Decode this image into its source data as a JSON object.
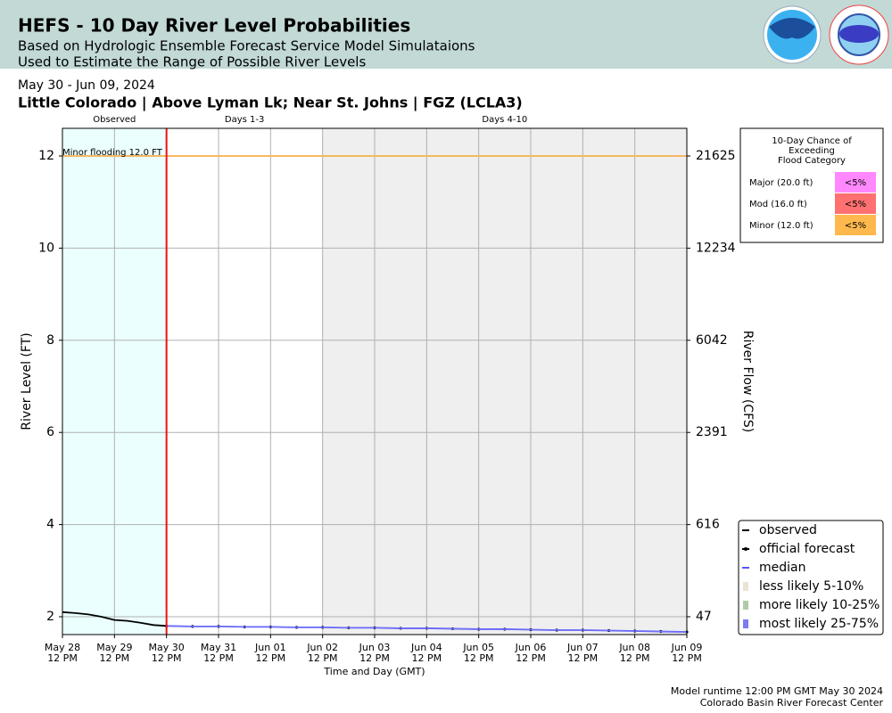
{
  "header": {
    "title": "HEFS - 10 Day River Level Probabilities",
    "subtitle_lines": [
      "Based on Hydrologic Ensemble Forecast Service Model Simulataions",
      "Used to Estimate the Range of Possible River Levels"
    ]
  },
  "chart_data": {
    "type": "line",
    "date_range": "May 30 - Jun 09, 2024",
    "title": "Little Colorado | Above Lyman Lk; Near St. Johns | FGZ (LCLA3)",
    "xlabel": "Time and Day (GMT)",
    "ylabel": "River Level (FT)",
    "y2label": "River Flow (CFS)",
    "xlim": [
      "2024-05-28T12:00Z",
      "2024-06-09T12:00Z"
    ],
    "xticks": [
      {
        "value": "2024-05-28T12:00Z",
        "label": [
          "May 28",
          "12 PM"
        ]
      },
      {
        "value": "2024-05-29T12:00Z",
        "label": [
          "May 29",
          "12 PM"
        ]
      },
      {
        "value": "2024-05-30T12:00Z",
        "label": [
          "May 30",
          "12 PM"
        ]
      },
      {
        "value": "2024-05-31T12:00Z",
        "label": [
          "May 31",
          "12 PM"
        ]
      },
      {
        "value": "2024-06-01T12:00Z",
        "label": [
          "Jun 01",
          "12 PM"
        ]
      },
      {
        "value": "2024-06-02T12:00Z",
        "label": [
          "Jun 02",
          "12 PM"
        ]
      },
      {
        "value": "2024-06-03T12:00Z",
        "label": [
          "Jun 03",
          "12 PM"
        ]
      },
      {
        "value": "2024-06-04T12:00Z",
        "label": [
          "Jun 04",
          "12 PM"
        ]
      },
      {
        "value": "2024-06-05T12:00Z",
        "label": [
          "Jun 05",
          "12 PM"
        ]
      },
      {
        "value": "2024-06-06T12:00Z",
        "label": [
          "Jun 06",
          "12 PM"
        ]
      },
      {
        "value": "2024-06-07T12:00Z",
        "label": [
          "Jun 07",
          "12 PM"
        ]
      },
      {
        "value": "2024-06-08T12:00Z",
        "label": [
          "Jun 08",
          "12 PM"
        ]
      },
      {
        "value": "2024-06-09T12:00Z",
        "label": [
          "Jun 09",
          "12 PM"
        ]
      }
    ],
    "ylim": [
      1.613,
      12.6
    ],
    "yticks": [
      2,
      4,
      6,
      8,
      10,
      12
    ],
    "y2ticks": [
      47,
      616,
      2391,
      6042,
      12234,
      21625
    ],
    "grid": true,
    "periods": [
      {
        "name": "Observed",
        "start": "2024-05-28T12:00Z",
        "end": "2024-05-30T12:00Z",
        "color": "#ebffff"
      },
      {
        "name": "Days 1-3",
        "start": "2024-05-30T12:00Z",
        "end": "2024-06-02T12:00Z",
        "color": "#ffffff"
      },
      {
        "name": "Days 4-10",
        "start": "2024-06-02T12:00Z",
        "end": "2024-06-09T12:00Z",
        "color": "#efefef"
      }
    ],
    "issue_time": "2024-05-30T12:00Z",
    "issue_color": "#ee1111",
    "thresholds": [
      {
        "label": "Minor flooding 12.0 FT",
        "value": 12,
        "color": "#f5b862"
      }
    ],
    "legend": "lower right",
    "series": [
      {
        "name": "observed",
        "color": "#000000",
        "style": "line",
        "x": [
          "2024-05-28T12:00Z",
          "2024-05-28T18:00Z",
          "2024-05-29T00:00Z",
          "2024-05-29T06:00Z",
          "2024-05-29T12:00Z",
          "2024-05-29T18:00Z",
          "2024-05-30T00:00Z",
          "2024-05-30T06:00Z",
          "2024-05-30T12:00Z"
        ],
        "values": [
          2.1,
          2.08,
          2.05,
          2.0,
          1.93,
          1.91,
          1.87,
          1.82,
          1.8
        ]
      },
      {
        "name": "official forecast",
        "color": "#000000",
        "style": "dots",
        "x": [
          "2024-05-30T12:00Z",
          "2024-05-31T00:00Z",
          "2024-05-31T12:00Z",
          "2024-06-01T00:00Z",
          "2024-06-01T12:00Z",
          "2024-06-02T00:00Z",
          "2024-06-02T12:00Z",
          "2024-06-03T00:00Z",
          "2024-06-03T12:00Z",
          "2024-06-04T00:00Z",
          "2024-06-04T12:00Z",
          "2024-06-05T00:00Z",
          "2024-06-05T12:00Z",
          "2024-06-06T00:00Z",
          "2024-06-06T12:00Z",
          "2024-06-07T00:00Z",
          "2024-06-07T12:00Z",
          "2024-06-08T00:00Z",
          "2024-06-08T12:00Z",
          "2024-06-09T00:00Z",
          "2024-06-09T12:00Z"
        ],
        "values": [
          1.8,
          1.79,
          1.79,
          1.78,
          1.78,
          1.77,
          1.77,
          1.76,
          1.76,
          1.75,
          1.75,
          1.74,
          1.73,
          1.73,
          1.72,
          1.71,
          1.71,
          1.7,
          1.69,
          1.68,
          1.67
        ]
      },
      {
        "name": "median",
        "color": "#5555ff",
        "style": "line",
        "x": [
          "2024-05-30T12:00Z",
          "2024-05-31T00:00Z",
          "2024-05-31T12:00Z",
          "2024-06-01T00:00Z",
          "2024-06-01T12:00Z",
          "2024-06-02T00:00Z",
          "2024-06-02T12:00Z",
          "2024-06-03T00:00Z",
          "2024-06-03T12:00Z",
          "2024-06-04T00:00Z",
          "2024-06-04T12:00Z",
          "2024-06-05T00:00Z",
          "2024-06-05T12:00Z",
          "2024-06-06T00:00Z",
          "2024-06-06T12:00Z",
          "2024-06-07T00:00Z",
          "2024-06-07T12:00Z",
          "2024-06-08T00:00Z",
          "2024-06-08T12:00Z",
          "2024-06-09T00:00Z",
          "2024-06-09T12:00Z"
        ],
        "values": [
          1.8,
          1.79,
          1.79,
          1.78,
          1.78,
          1.77,
          1.77,
          1.76,
          1.76,
          1.75,
          1.75,
          1.74,
          1.73,
          1.73,
          1.72,
          1.71,
          1.71,
          1.7,
          1.69,
          1.68,
          1.67
        ]
      },
      {
        "name": "less likely 5-10%",
        "color": "#ebe3d3",
        "style": "band"
      },
      {
        "name": "more likely 10-25%",
        "color": "#b0cba8",
        "style": "band"
      },
      {
        "name": "most likely 25-75%",
        "color": "#7c7cf2",
        "style": "band",
        "x": [
          "2024-05-30T12:00Z",
          "2024-05-31T12:00Z",
          "2024-06-01T12:00Z",
          "2024-06-02T12:00Z",
          "2024-06-03T12:00Z",
          "2024-06-04T12:00Z",
          "2024-06-05T12:00Z",
          "2024-06-06T12:00Z",
          "2024-06-07T12:00Z",
          "2024-06-08T12:00Z",
          "2024-06-09T12:00Z"
        ],
        "low": [
          1.79,
          1.78,
          1.77,
          1.76,
          1.75,
          1.74,
          1.72,
          1.71,
          1.7,
          1.68,
          1.66
        ],
        "high": [
          1.81,
          1.8,
          1.79,
          1.78,
          1.77,
          1.76,
          1.74,
          1.73,
          1.72,
          1.7,
          1.68
        ]
      }
    ],
    "flood_table": {
      "title_lines": [
        "10-Day Chance of",
        "Exceeding",
        "Flood Category"
      ],
      "rows": [
        {
          "label": "Major (20.0 ft)",
          "value_label": "<5%",
          "color": "#ff88ff"
        },
        {
          "label": "Mod (16.0 ft)",
          "value_label": "<5%",
          "color": "#ff7070"
        },
        {
          "label": "Minor (12.0 ft)",
          "value_label": "<5%",
          "color": "#ffb84d"
        }
      ]
    }
  },
  "footer": {
    "lines": [
      "Model runtime 12:00 PM GMT May 30 2024",
      "Colorado Basin River Forecast Center"
    ]
  }
}
